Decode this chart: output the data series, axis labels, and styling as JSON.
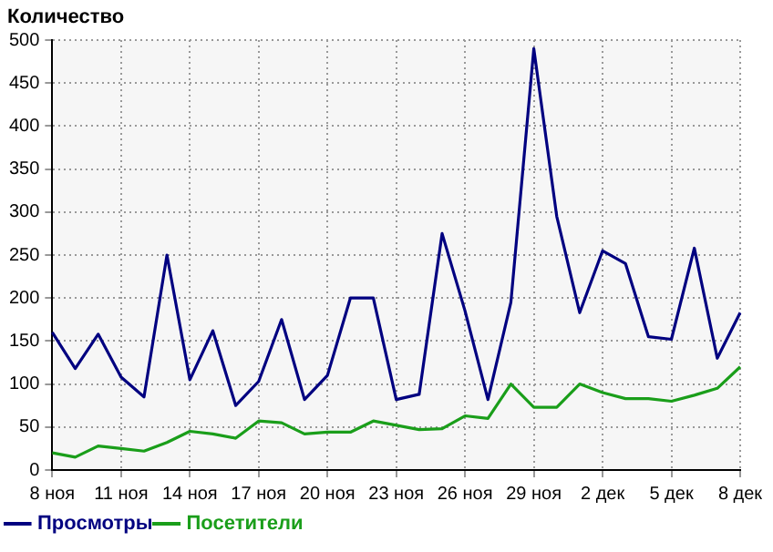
{
  "chart_data": {
    "type": "line",
    "ylabel": "Количество",
    "categories": [
      "8 ноя",
      null,
      null,
      "11 ноя",
      null,
      null,
      "14 ноя",
      null,
      null,
      "17 ноя",
      null,
      null,
      "20 ноя",
      null,
      null,
      "23 ноя",
      null,
      null,
      "26 ноя",
      null,
      null,
      "29 ноя",
      null,
      null,
      "2 дек",
      null,
      null,
      "5 дек",
      null,
      null,
      "8 дек"
    ],
    "series": [
      {
        "name": "Просмотры",
        "color": "#000080",
        "values": [
          160,
          118,
          158,
          108,
          85,
          250,
          105,
          162,
          75,
          103,
          175,
          82,
          110,
          200,
          200,
          82,
          88,
          275,
          185,
          82,
          195,
          490,
          295,
          183,
          255,
          240,
          155,
          152,
          258,
          130,
          183
        ]
      },
      {
        "name": "Посетители",
        "color": "#1a9e1a",
        "values": [
          20,
          15,
          28,
          25,
          22,
          32,
          45,
          42,
          37,
          57,
          55,
          42,
          44,
          44,
          57,
          52,
          47,
          48,
          63,
          60,
          100,
          73,
          73,
          100,
          90,
          83,
          83,
          80,
          87,
          95,
          120
        ]
      }
    ],
    "ylim": [
      0,
      500
    ],
    "yticks": [
      0,
      50,
      100,
      150,
      200,
      250,
      300,
      350,
      400,
      450,
      500
    ],
    "grid": true,
    "legend": "bottom left",
    "marker": "none",
    "line_style": "solid"
  }
}
